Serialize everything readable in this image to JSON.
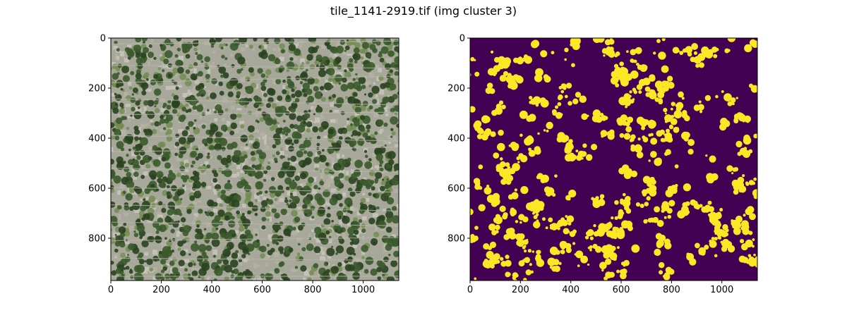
{
  "figure": {
    "title": "tile_1141-2919.tif (img cluster 3)"
  },
  "chart_data": [
    {
      "type": "heatmap",
      "content": "aerial-rgb-image",
      "x_ticks": [
        0,
        200,
        400,
        600,
        800,
        1000
      ],
      "y_ticks": [
        0,
        200,
        400,
        600,
        800
      ],
      "xlim": [
        0,
        1141
      ],
      "ylim": [
        969,
        0
      ],
      "colors": {
        "road": "#a7a89a",
        "roof": "#c4c2b8",
        "tree": "#3b5a2c",
        "tree_dark": "#2a4220",
        "grass": "#6f8a4e"
      }
    },
    {
      "type": "heatmap",
      "content": "binary-cluster-mask",
      "colormap": "viridis",
      "x_ticks": [
        0,
        200,
        400,
        600,
        800,
        1000
      ],
      "y_ticks": [
        0,
        200,
        400,
        600,
        800
      ],
      "xlim": [
        0,
        1141
      ],
      "ylim": [
        969,
        0
      ],
      "colors": {
        "background": "#440154",
        "foreground": "#fde725"
      }
    }
  ]
}
